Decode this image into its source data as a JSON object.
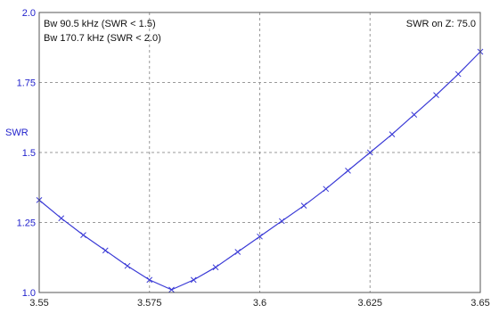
{
  "chart_data": {
    "type": "line",
    "title": "",
    "xlabel": "",
    "ylabel": "SWR",
    "xlim": [
      3.55,
      3.65
    ],
    "ylim": [
      1.0,
      2.0
    ],
    "grid": true,
    "x_ticks": [
      "3.55",
      "3.575",
      "3.6",
      "3.625",
      "3.65"
    ],
    "x_tick_values": [
      3.55,
      3.575,
      3.6,
      3.625,
      3.65
    ],
    "y_ticks": [
      "1.0",
      "1.25",
      "1.5",
      "1.75",
      "2.0"
    ],
    "y_tick_values": [
      1.0,
      1.25,
      1.5,
      1.75,
      2.0
    ],
    "annotations": {
      "bw1": "Bw 90.5 kHz (SWR < 1.5)",
      "bw2": "Bw 170.7 kHz (SWR < 2.0)",
      "swr_z": "SWR on Z: 75.0"
    },
    "colors": {
      "line": "#3a3ad6",
      "grid": "#999999",
      "axis_tick": "#2222cc"
    },
    "series": [
      {
        "x": [
          3.55,
          3.555,
          3.56,
          3.565,
          3.57,
          3.575,
          3.58,
          3.585,
          3.59,
          3.595,
          3.6,
          3.605,
          3.61,
          3.615,
          3.62,
          3.625,
          3.63,
          3.635,
          3.64,
          3.645,
          3.65
        ],
        "values": [
          1.33,
          1.265,
          1.205,
          1.15,
          1.095,
          1.045,
          1.01,
          1.045,
          1.09,
          1.145,
          1.2,
          1.255,
          1.31,
          1.37,
          1.435,
          1.5,
          1.565,
          1.635,
          1.705,
          1.78,
          1.86
        ]
      }
    ]
  }
}
